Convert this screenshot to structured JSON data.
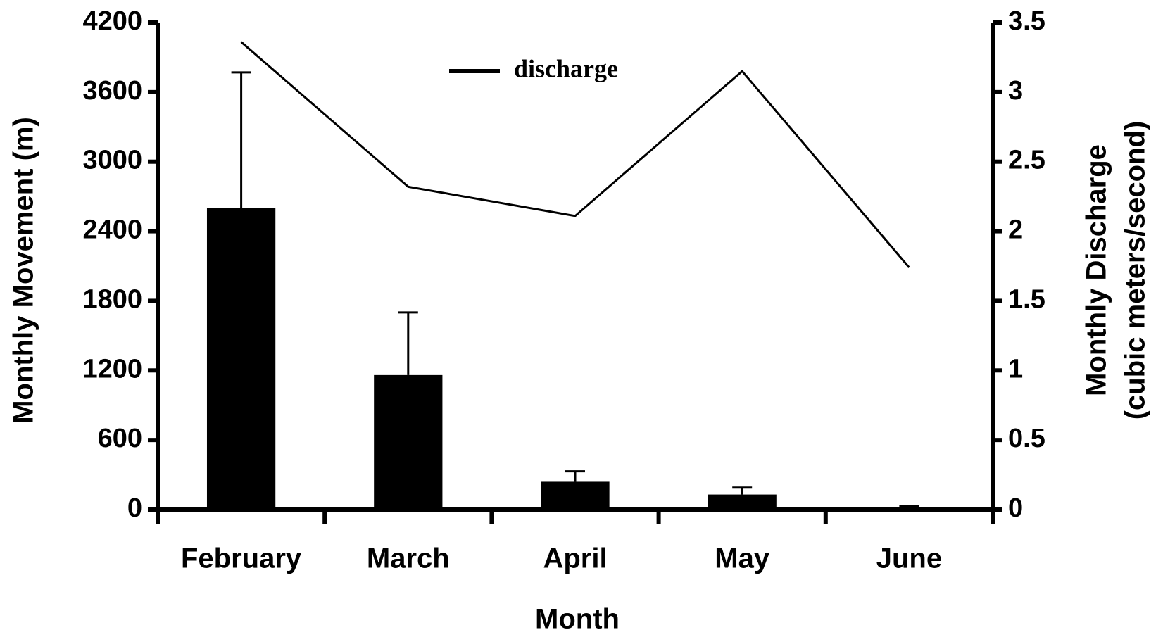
{
  "chart_data": {
    "type": "bar",
    "xlabel": "Month",
    "ylabel": "Monthly Movement (m)",
    "y2label": [
      "Monthly Discharge",
      "(cubic meters/second)"
    ],
    "categories": [
      "February",
      "March",
      "April",
      "May",
      "June"
    ],
    "series": [
      {
        "type": "bar",
        "color": "#000000",
        "values": [
          2600,
          1160,
          240,
          130,
          10
        ],
        "errors": [
          1170,
          540,
          90,
          60,
          20
        ]
      },
      {
        "type": "line",
        "name": "discharge",
        "axis": "y2",
        "color": "#000000",
        "values": [
          3.36,
          2.32,
          2.11,
          3.15,
          1.74
        ]
      }
    ],
    "ylim": [
      0,
      4200
    ],
    "yticks": [
      0,
      600,
      1200,
      1800,
      2400,
      3000,
      3600,
      4200
    ],
    "y2lim": [
      0,
      3.5
    ],
    "y2ticks": [
      0,
      0.5,
      1,
      1.5,
      2,
      2.5,
      3,
      3.5
    ],
    "legend": "top",
    "grid": false
  }
}
